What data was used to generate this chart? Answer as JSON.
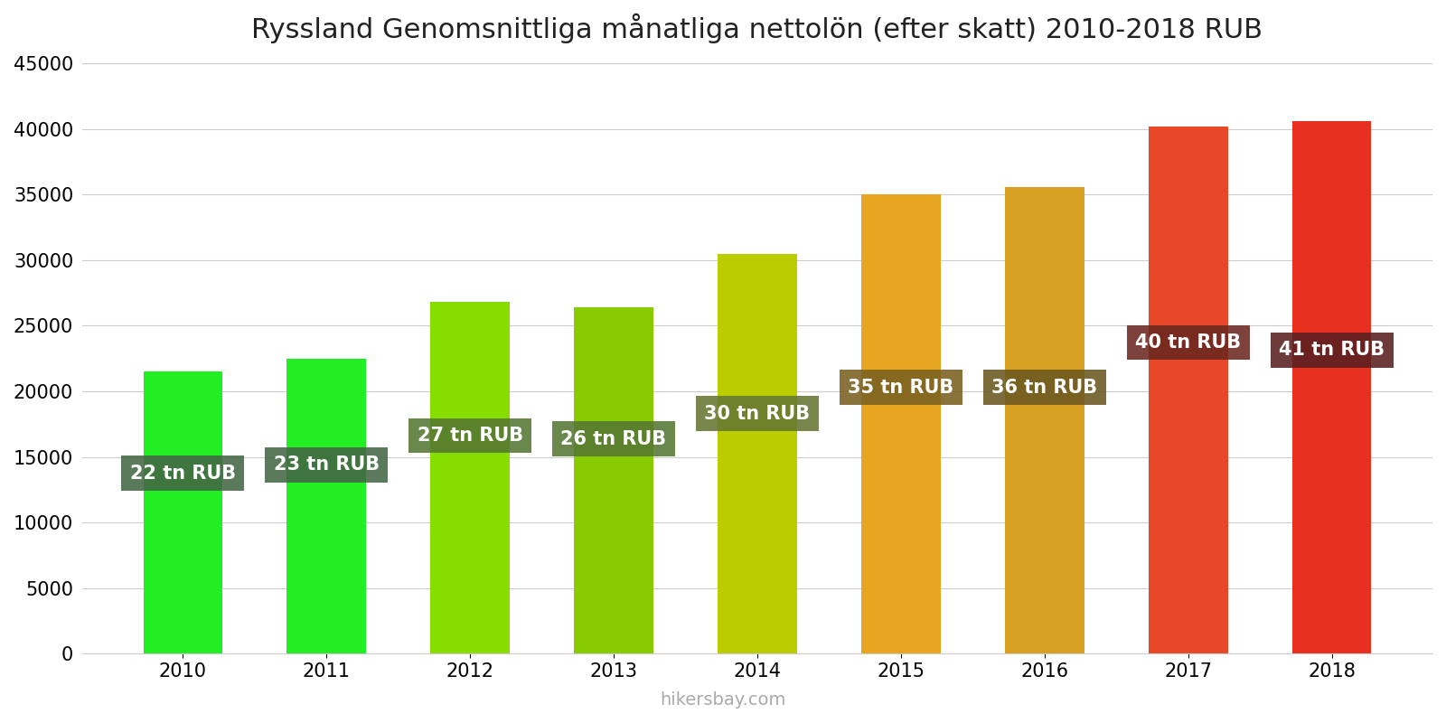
{
  "title": "Ryssland Genomsnittliga månatliga nettolön (efter skatt) 2010-2018 RUB",
  "years": [
    2010,
    2011,
    2012,
    2013,
    2014,
    2015,
    2016,
    2017,
    2018
  ],
  "values": [
    21500,
    22500,
    26800,
    26400,
    30500,
    35000,
    35600,
    40200,
    40600
  ],
  "labels": [
    "22 tn RUB",
    "23 tn RUB",
    "27 tn RUB",
    "26 tn RUB",
    "30 tn RUB",
    "35 tn RUB",
    "36 tn RUB",
    "40 tn RUB",
    "41 tn RUB"
  ],
  "bar_colors": [
    "#22ee22",
    "#22ee22",
    "#88dd00",
    "#88cc00",
    "#bbcc00",
    "#e8a520",
    "#d8a020",
    "#e84828",
    "#e83020"
  ],
  "label_bg_colors": [
    "#446644",
    "#446644",
    "#557733",
    "#557733",
    "#667733",
    "#7a6020",
    "#6a5820",
    "#6a2820",
    "#5a2020"
  ],
  "ylim": [
    0,
    45000
  ],
  "yticks": [
    0,
    5000,
    10000,
    15000,
    20000,
    25000,
    30000,
    35000,
    40000,
    45000
  ],
  "label_text_color": "#ffffff",
  "label_fontsize": 15,
  "title_fontsize": 22,
  "tick_fontsize": 15,
  "watermark": "hikersbay.com",
  "background_color": "#ffffff",
  "bar_width": 0.55
}
